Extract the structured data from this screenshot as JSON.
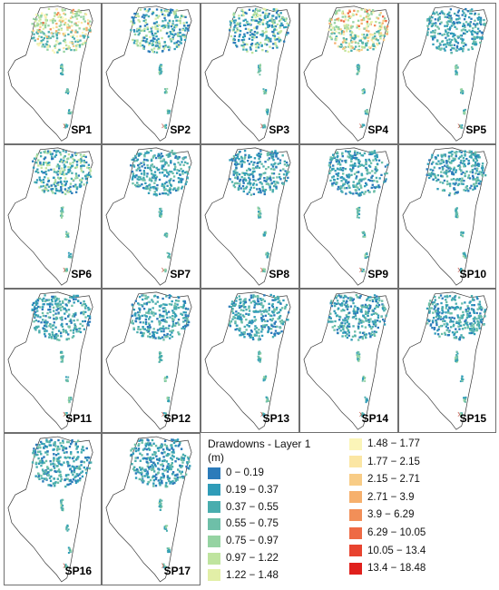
{
  "panels": [
    {
      "label": "SP1"
    },
    {
      "label": "SP2"
    },
    {
      "label": "SP3"
    },
    {
      "label": "SP4"
    },
    {
      "label": "SP5"
    },
    {
      "label": "SP6"
    },
    {
      "label": "SP7"
    },
    {
      "label": "SP8"
    },
    {
      "label": "SP9"
    },
    {
      "label": "SP10"
    },
    {
      "label": "SP11"
    },
    {
      "label": "SP12"
    },
    {
      "label": "SP13"
    },
    {
      "label": "SP14"
    },
    {
      "label": "SP15"
    },
    {
      "label": "SP16"
    },
    {
      "label": "SP17"
    }
  ],
  "legend": {
    "title": "Drawdowns - Layer 1",
    "unit": "(m)",
    "items": [
      {
        "label": "0 − 0.19",
        "color": "#2b7bba"
      },
      {
        "label": "0.19 − 0.37",
        "color": "#2f9cb8"
      },
      {
        "label": "0.37 − 0.55",
        "color": "#49adae"
      },
      {
        "label": "0.55 − 0.75",
        "color": "#6ebfa8"
      },
      {
        "label": "0.75 − 0.97",
        "color": "#95d3a2"
      },
      {
        "label": "0.97 − 1.22",
        "color": "#bfe49f"
      },
      {
        "label": "1.22 − 1.48",
        "color": "#e2efa7"
      },
      {
        "label": "1.48 − 1.77",
        "color": "#fbf5b8"
      },
      {
        "label": "1.77 − 2.15",
        "color": "#fbe6a3"
      },
      {
        "label": "2.15 − 2.71",
        "color": "#f8cc86"
      },
      {
        "label": "2.71 − 3.9",
        "color": "#f6b06d"
      },
      {
        "label": "3.9 − 6.29",
        "color": "#f28f58"
      },
      {
        "label": "6.29 − 10.05",
        "color": "#ee6a44"
      },
      {
        "label": "10.05 − 13.4",
        "color": "#e8432f"
      },
      {
        "label": "13.4 − 18.48",
        "color": "#e0201c"
      }
    ]
  }
}
